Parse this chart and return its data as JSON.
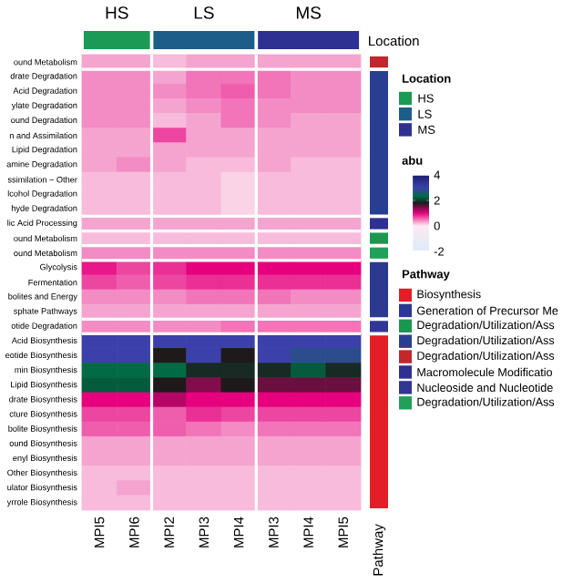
{
  "chart_data": {
    "type": "heatmap",
    "categories": [
      "MPI5",
      "MPI6",
      "MPI2",
      "MPI3",
      "MPI4",
      "MPI3",
      "MPI4",
      "MPI5"
    ],
    "y_categories": [
      "ound Metabolism",
      "drate Degradation",
      "Acid Degradation",
      "ylate Degradation",
      "ound Degradation",
      "n and Assimilation",
      "Lipid Degradation",
      "amine Degradation",
      "ssimilation − Other",
      "lcohol Degradation",
      "hyde Degradation",
      "lic Acid Processing",
      "ound Metabolism",
      "ound Metabolism",
      "Glycolysis",
      "Fermentation",
      "bolites and Energy",
      "sphate Pathways",
      "otide Degradation",
      "Acid Biosynthesis",
      "eotide Biosynthesis",
      "min Biosynthesis",
      "Lipid Biosynthesis",
      "drate Biosynthesis",
      "cture Biosynthesis",
      "bolite Biosynthesis",
      "ound Biosynthesis",
      "enyl Biosynthesis",
      "Other Biosynthesis",
      "ulator Biosynthesis",
      "yrrole Biosynthesis"
    ],
    "cells": [
      [
        0.3,
        0.3,
        0.2,
        0.3,
        0.3,
        0.3,
        0.3,
        0.3
      ],
      [
        0.4,
        0.4,
        0.3,
        0.5,
        0.5,
        0.5,
        0.4,
        0.4
      ],
      [
        0.4,
        0.4,
        0.4,
        0.5,
        0.6,
        0.5,
        0.4,
        0.4
      ],
      [
        0.4,
        0.4,
        0.3,
        0.4,
        0.5,
        0.4,
        0.4,
        0.4
      ],
      [
        0.4,
        0.4,
        0.2,
        0.3,
        0.5,
        0.4,
        0.3,
        0.3
      ],
      [
        0.3,
        0.3,
        0.7,
        0.3,
        0.3,
        0.3,
        0.3,
        0.3
      ],
      [
        0.3,
        0.3,
        0.3,
        0.3,
        0.3,
        0.3,
        0.3,
        0.3
      ],
      [
        0.3,
        0.4,
        0.3,
        0.2,
        0.2,
        0.3,
        0.2,
        0.2
      ],
      [
        0.2,
        0.2,
        0.2,
        0.2,
        0.1,
        0.2,
        0.2,
        0.2
      ],
      [
        0.2,
        0.2,
        0.2,
        0.2,
        0.1,
        0.2,
        0.2,
        0.2
      ],
      [
        0.2,
        0.2,
        0.2,
        0.2,
        0.1,
        0.2,
        0.2,
        0.2
      ],
      [
        0.3,
        0.3,
        0.3,
        0.3,
        0.3,
        0.3,
        0.3,
        0.3
      ],
      [
        0.2,
        0.2,
        0.2,
        0.2,
        0.2,
        0.2,
        0.2,
        0.2
      ],
      [
        0.4,
        0.4,
        0.4,
        0.4,
        0.4,
        0.4,
        0.4,
        0.4
      ],
      [
        0.9,
        0.7,
        0.8,
        1.0,
        1.0,
        1.0,
        1.0,
        1.0
      ],
      [
        0.7,
        0.6,
        0.7,
        0.8,
        0.8,
        0.8,
        0.8,
        0.8
      ],
      [
        0.4,
        0.4,
        0.4,
        0.5,
        0.5,
        0.5,
        0.4,
        0.4
      ],
      [
        0.3,
        0.3,
        0.3,
        0.3,
        0.3,
        0.3,
        0.3,
        0.3
      ],
      [
        0.4,
        0.4,
        0.4,
        0.4,
        0.5,
        0.5,
        0.5,
        0.5
      ],
      [
        3,
        3,
        3,
        3,
        3,
        3,
        3,
        3
      ],
      [
        3,
        3,
        1.8,
        3,
        1.8,
        3,
        2.8,
        2.8
      ],
      [
        2.3,
        2.3,
        2.3,
        1.9,
        1.9,
        1.9,
        2.2,
        1.9
      ],
      [
        2.2,
        2.2,
        1.8,
        1.4,
        1.8,
        1.5,
        1.5,
        1.5
      ],
      [
        1,
        1,
        1.2,
        1,
        1,
        1,
        1,
        1
      ],
      [
        0.7,
        0.7,
        0.6,
        0.8,
        0.7,
        0.7,
        0.7,
        0.7
      ],
      [
        0.6,
        0.6,
        0.6,
        0.5,
        0.4,
        0.5,
        0.5,
        0.5
      ],
      [
        0.3,
        0.3,
        0.3,
        0.3,
        0.3,
        0.3,
        0.3,
        0.3
      ],
      [
        0.3,
        0.3,
        0.3,
        0.3,
        0.3,
        0.3,
        0.3,
        0.3
      ],
      [
        0.2,
        0.2,
        0.2,
        0.2,
        0.2,
        0.2,
        0.2,
        0.2
      ],
      [
        0.2,
        0.3,
        0.2,
        0.2,
        0.2,
        0.2,
        0.2,
        0.2
      ],
      [
        0.2,
        0.2,
        0.2,
        0.2,
        0.2,
        0.2,
        0.2,
        0.2
      ]
    ],
    "clim": [
      -2,
      4
    ],
    "cticks": [
      -2,
      0,
      2,
      4
    ],
    "clabel": "abu",
    "annotations": [
      "Location",
      "Pathway",
      "HS",
      "LS",
      "MS",
      "Biosynthesis",
      "Generation of Precursor Me",
      "Degradation/Utilization/Ass",
      "Degradation/Utilization/Ass",
      "Degradation/Utilization/Ass",
      "Macromolecule Modificatio",
      "Nucleoside and Nucleotide",
      "Degradation/Utilization/Ass"
    ]
  }
}
